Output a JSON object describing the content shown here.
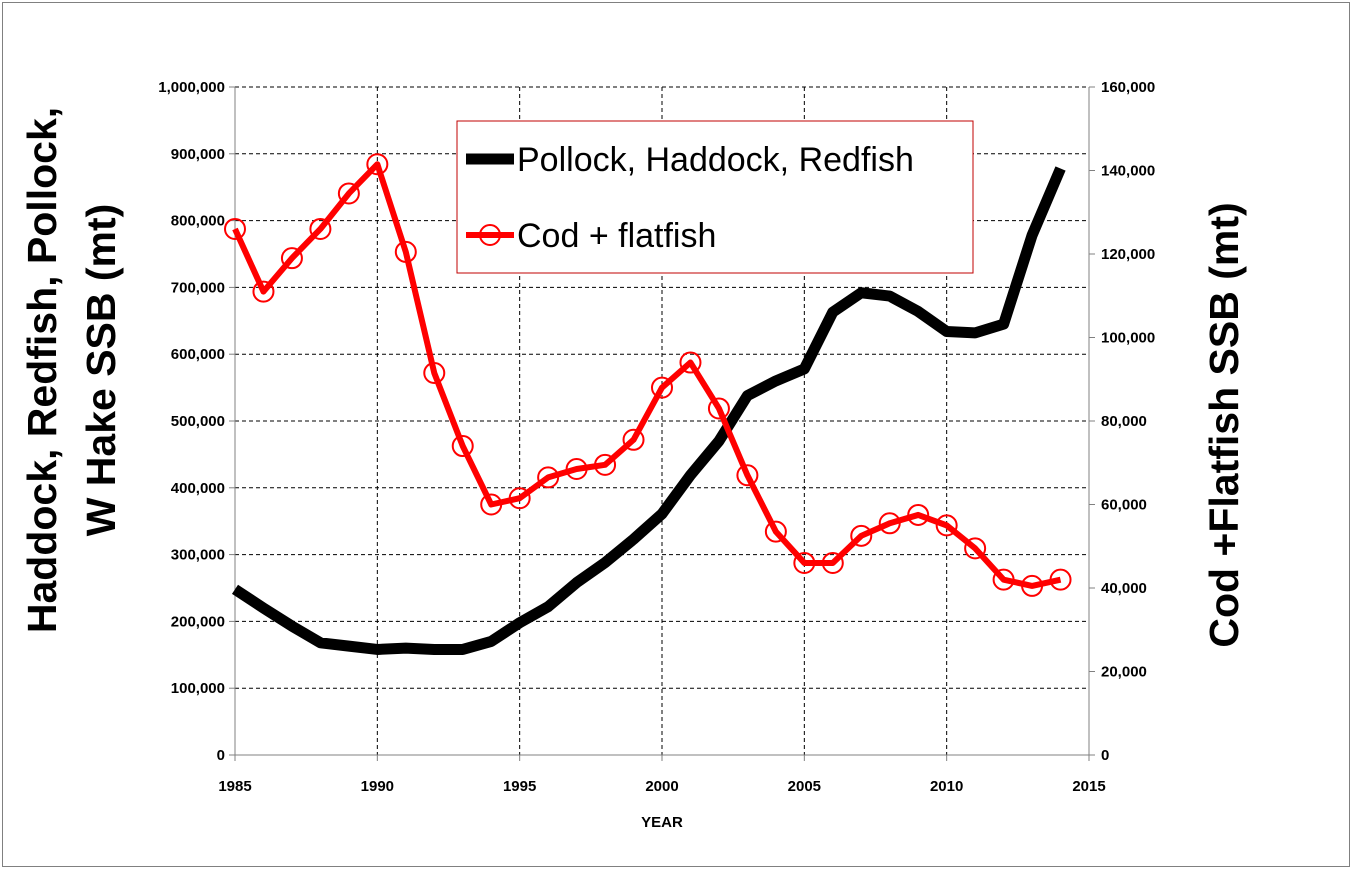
{
  "chart_data": {
    "type": "line",
    "xlabel": "YEAR",
    "ylabel_left": [
      "Haddock, Redfish, Pollock,",
      "W Hake SSB (mt)"
    ],
    "ylabel_right": "Cod +Flatfish SSB (mt)",
    "xlim": [
      1985,
      2015
    ],
    "ylim_left": [
      0,
      1000000
    ],
    "ylim_right": [
      0,
      160000
    ],
    "x_ticks": [
      "1985",
      "1990",
      "1995",
      "2000",
      "2005",
      "2010",
      "2015"
    ],
    "y_ticks_left": [
      "0",
      "100,000",
      "200,000",
      "300,000",
      "400,000",
      "500,000",
      "600,000",
      "700,000",
      "800,000",
      "900,000",
      "1,000,000"
    ],
    "y_ticks_right": [
      "0",
      "20,000",
      "40,000",
      "60,000",
      "80,000",
      "100,000",
      "120,000",
      "140,000",
      "160,000"
    ],
    "grid": true,
    "legend_position": "top-center",
    "series": [
      {
        "name": "Pollock, Haddock, Redfish",
        "axis": "left",
        "color": "#000000",
        "marker": "none",
        "x": [
          1985,
          1986,
          1987,
          1988,
          1989,
          1990,
          1991,
          1992,
          1993,
          1994,
          1995,
          1996,
          1997,
          1998,
          1999,
          2000,
          2001,
          2002,
          2003,
          2004,
          2005,
          2006,
          2007,
          2008,
          2009,
          2010,
          2011,
          2012,
          2013,
          2014
        ],
        "values": [
          248000,
          220000,
          193000,
          168000,
          163000,
          158000,
          160000,
          158000,
          158000,
          170000,
          198000,
          222000,
          258000,
          288000,
          323000,
          361000,
          419000,
          470000,
          538000,
          560000,
          578000,
          663000,
          692000,
          687000,
          664000,
          634000,
          632000,
          645000,
          778000,
          878000
        ]
      },
      {
        "name": "Cod + flatfish",
        "axis": "right",
        "color": "#ff0000",
        "marker": "circle",
        "x": [
          1985,
          1986,
          1987,
          1988,
          1989,
          1990,
          1991,
          1992,
          1993,
          1994,
          1995,
          1996,
          1997,
          1998,
          1999,
          2000,
          2001,
          2002,
          2003,
          2004,
          2005,
          2006,
          2007,
          2008,
          2009,
          2010,
          2011,
          2012,
          2013,
          2014
        ],
        "values": [
          126000,
          111000,
          119000,
          126000,
          134500,
          141500,
          120500,
          91500,
          74000,
          60000,
          61500,
          66500,
          68500,
          69500,
          75500,
          88000,
          94000,
          83000,
          67000,
          53500,
          46000,
          46000,
          52500,
          55500,
          57500,
          55000,
          49500,
          42000,
          40500,
          42000
        ]
      }
    ]
  }
}
